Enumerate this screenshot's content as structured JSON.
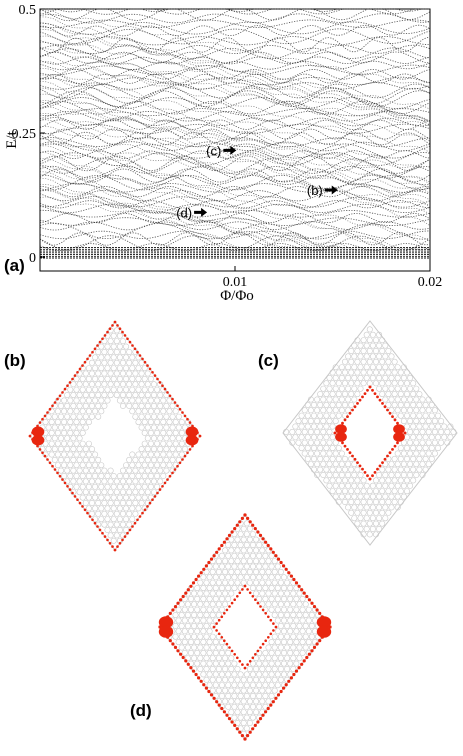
{
  "chart_data": {
    "type": "line",
    "title": "",
    "xlabel": "Φ/Φo",
    "ylabel": "E/t",
    "xlim": [
      0,
      0.02
    ],
    "ylim": [
      0,
      0.5
    ],
    "x_ticks": [
      "0.01",
      "0.02"
    ],
    "y_ticks": [
      "0",
      "0.25",
      "0.5"
    ],
    "annotations": [
      {
        "label": "(c)",
        "x": 0.0093,
        "y": 0.215
      },
      {
        "label": "(b)",
        "x": 0.0145,
        "y": 0.135
      },
      {
        "label": "(d)",
        "x": 0.0078,
        "y": 0.09
      }
    ],
    "grid": false
  },
  "figure": {
    "panel_labels": {
      "a": "(a)",
      "b": "(b)",
      "c": "(c)",
      "d": "(d)"
    }
  },
  "colors": {
    "spectrum": "#333333",
    "lattice": "#c8c8c8",
    "density": "#e8260f",
    "arrow": "#000000"
  }
}
